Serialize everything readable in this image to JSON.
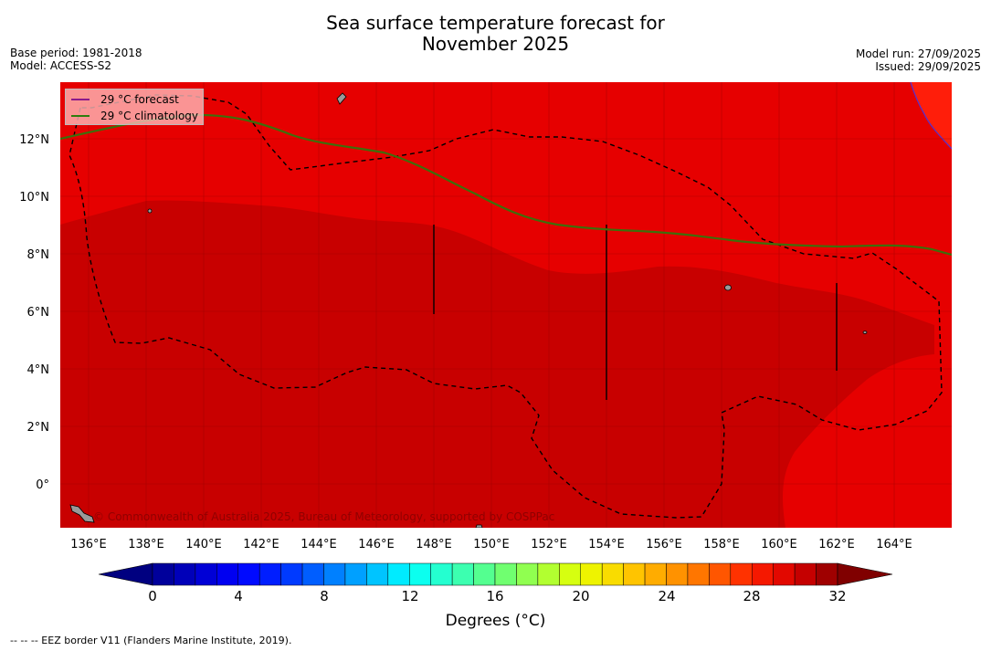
{
  "title_line1": "Sea surface temperature forecast for",
  "title_line2": "November 2025",
  "meta_left": {
    "base_period": "Base period: 1981-2018",
    "model": "Model: ACCESS-S2"
  },
  "meta_right": {
    "model_run": "Model run: 27/09/2025",
    "issued": "Issued: 29/09/2025"
  },
  "legend": [
    {
      "label": "29 °C  forecast",
      "color": "#8b1a8b"
    },
    {
      "label": "29 °C  climatology",
      "color": "#2e7d0e"
    }
  ],
  "lat_labels": [
    "12°N",
    "10°N",
    "8°N",
    "6°N",
    "4°N",
    "2°N",
    "0°"
  ],
  "lon_labels": [
    "136°E",
    "138°E",
    "140°E",
    "142°E",
    "144°E",
    "146°E",
    "148°E",
    "150°E",
    "152°E",
    "154°E",
    "156°E",
    "158°E",
    "160°E",
    "162°E",
    "164°E"
  ],
  "copyright": "© Commonwealth of Australia 2025, Bureau of Meteorology, supported by COSPPac",
  "colorbar": {
    "ticks": [
      "0",
      "4",
      "8",
      "12",
      "16",
      "20",
      "24",
      "28",
      "32"
    ],
    "title": "Degrees (°C)"
  },
  "footnote": "--  --  -- EEZ border V11 (Flanders Marine Institute, 2019).",
  "colors": {
    "sst_29_30": "#e60000",
    "sst_30_31": "#c80000",
    "sst_28_29": "#ff1e0a",
    "eez_border": "#000000"
  }
}
